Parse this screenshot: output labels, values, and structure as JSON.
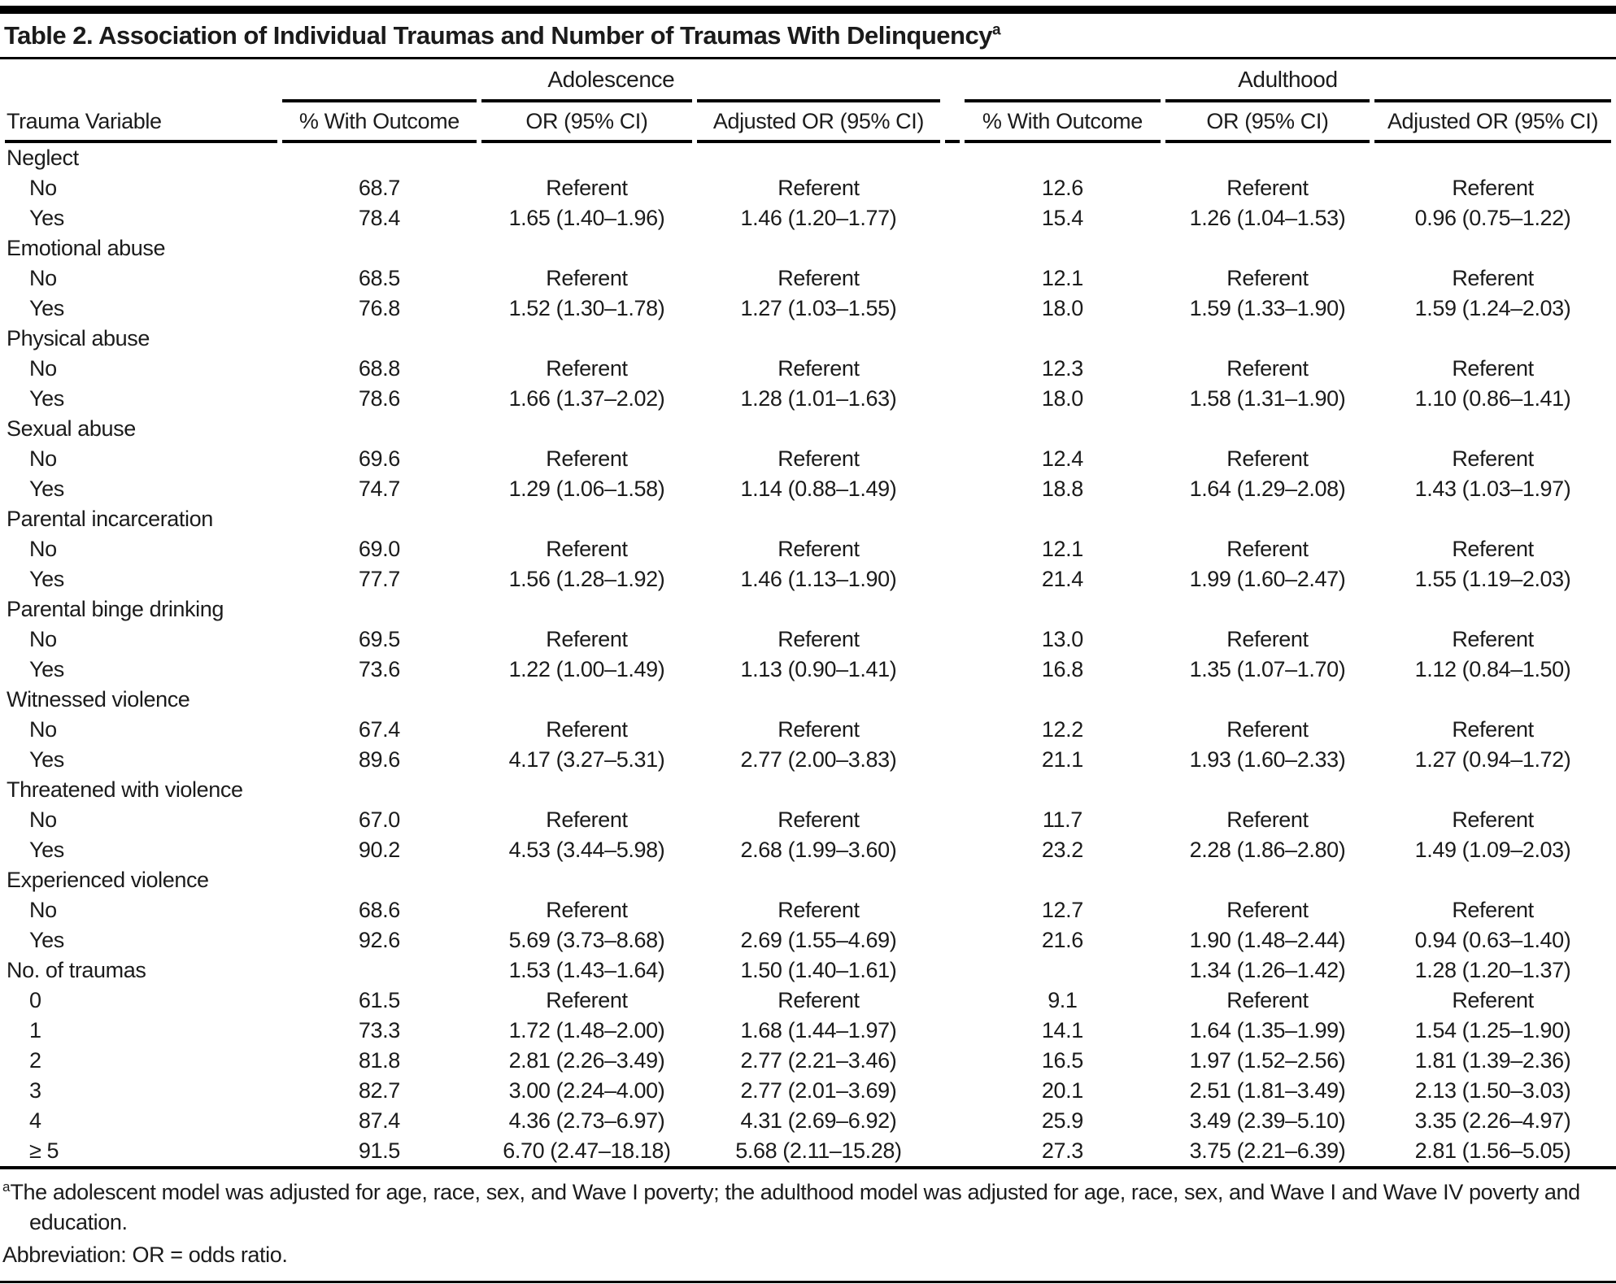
{
  "title": "Table 2. Association of Individual Traumas and Number of Traumas With Delinquency",
  "title_superscript": "a",
  "col_groups": [
    {
      "label": "Adolescence",
      "span": 3
    },
    {
      "label": "Adulthood",
      "span": 3
    }
  ],
  "columns": [
    "Trauma Variable",
    "% With Outcome",
    "OR (95% CI)",
    "Adjusted OR (95% CI)",
    "% With Outcome",
    "OR (95% CI)",
    "Adjusted OR (95% CI)"
  ],
  "rows": [
    {
      "label": "Neglect",
      "indent": false,
      "cells": [
        "",
        "",
        "",
        "",
        "",
        ""
      ]
    },
    {
      "label": "No",
      "indent": true,
      "cells": [
        "68.7",
        "Referent",
        "Referent",
        "12.6",
        "Referent",
        "Referent"
      ]
    },
    {
      "label": "Yes",
      "indent": true,
      "cells": [
        "78.4",
        "1.65 (1.40–1.96)",
        "1.46 (1.20–1.77)",
        "15.4",
        "1.26 (1.04–1.53)",
        "0.96 (0.75–1.22)"
      ]
    },
    {
      "label": "Emotional abuse",
      "indent": false,
      "cells": [
        "",
        "",
        "",
        "",
        "",
        ""
      ]
    },
    {
      "label": "No",
      "indent": true,
      "cells": [
        "68.5",
        "Referent",
        "Referent",
        "12.1",
        "Referent",
        "Referent"
      ]
    },
    {
      "label": "Yes",
      "indent": true,
      "cells": [
        "76.8",
        "1.52 (1.30–1.78)",
        "1.27 (1.03–1.55)",
        "18.0",
        "1.59 (1.33–1.90)",
        "1.59 (1.24–2.03)"
      ]
    },
    {
      "label": "Physical abuse",
      "indent": false,
      "cells": [
        "",
        "",
        "",
        "",
        "",
        ""
      ]
    },
    {
      "label": "No",
      "indent": true,
      "cells": [
        "68.8",
        "Referent",
        "Referent",
        "12.3",
        "Referent",
        "Referent"
      ]
    },
    {
      "label": "Yes",
      "indent": true,
      "cells": [
        "78.6",
        "1.66 (1.37–2.02)",
        "1.28 (1.01–1.63)",
        "18.0",
        "1.58 (1.31–1.90)",
        "1.10 (0.86–1.41)"
      ]
    },
    {
      "label": "Sexual abuse",
      "indent": false,
      "cells": [
        "",
        "",
        "",
        "",
        "",
        ""
      ]
    },
    {
      "label": "No",
      "indent": true,
      "cells": [
        "69.6",
        "Referent",
        "Referent",
        "12.4",
        "Referent",
        "Referent"
      ]
    },
    {
      "label": "Yes",
      "indent": true,
      "cells": [
        "74.7",
        "1.29 (1.06–1.58)",
        "1.14 (0.88–1.49)",
        "18.8",
        "1.64 (1.29–2.08)",
        "1.43 (1.03–1.97)"
      ]
    },
    {
      "label": "Parental incarceration",
      "indent": false,
      "cells": [
        "",
        "",
        "",
        "",
        "",
        ""
      ]
    },
    {
      "label": "No",
      "indent": true,
      "cells": [
        "69.0",
        "Referent",
        "Referent",
        "12.1",
        "Referent",
        "Referent"
      ]
    },
    {
      "label": "Yes",
      "indent": true,
      "cells": [
        "77.7",
        "1.56 (1.28–1.92)",
        "1.46 (1.13–1.90)",
        "21.4",
        "1.99 (1.60–2.47)",
        "1.55 (1.19–2.03)"
      ]
    },
    {
      "label": "Parental binge drinking",
      "indent": false,
      "cells": [
        "",
        "",
        "",
        "",
        "",
        ""
      ]
    },
    {
      "label": "No",
      "indent": true,
      "cells": [
        "69.5",
        "Referent",
        "Referent",
        "13.0",
        "Referent",
        "Referent"
      ]
    },
    {
      "label": "Yes",
      "indent": true,
      "cells": [
        "73.6",
        "1.22 (1.00–1.49)",
        "1.13 (0.90–1.41)",
        "16.8",
        "1.35 (1.07–1.70)",
        "1.12 (0.84–1.50)"
      ]
    },
    {
      "label": "Witnessed violence",
      "indent": false,
      "cells": [
        "",
        "",
        "",
        "",
        "",
        ""
      ]
    },
    {
      "label": "No",
      "indent": true,
      "cells": [
        "67.4",
        "Referent",
        "Referent",
        "12.2",
        "Referent",
        "Referent"
      ]
    },
    {
      "label": "Yes",
      "indent": true,
      "cells": [
        "89.6",
        "4.17 (3.27–5.31)",
        "2.77 (2.00–3.83)",
        "21.1",
        "1.93 (1.60–2.33)",
        "1.27 (0.94–1.72)"
      ]
    },
    {
      "label": "Threatened with violence",
      "indent": false,
      "cells": [
        "",
        "",
        "",
        "",
        "",
        ""
      ]
    },
    {
      "label": "No",
      "indent": true,
      "cells": [
        "67.0",
        "Referent",
        "Referent",
        "11.7",
        "Referent",
        "Referent"
      ]
    },
    {
      "label": "Yes",
      "indent": true,
      "cells": [
        "90.2",
        "4.53 (3.44–5.98)",
        "2.68 (1.99–3.60)",
        "23.2",
        "2.28 (1.86–2.80)",
        "1.49 (1.09–2.03)"
      ]
    },
    {
      "label": "Experienced violence",
      "indent": false,
      "cells": [
        "",
        "",
        "",
        "",
        "",
        ""
      ]
    },
    {
      "label": "No",
      "indent": true,
      "cells": [
        "68.6",
        "Referent",
        "Referent",
        "12.7",
        "Referent",
        "Referent"
      ]
    },
    {
      "label": "Yes",
      "indent": true,
      "cells": [
        "92.6",
        "5.69 (3.73–8.68)",
        "2.69 (1.55–4.69)",
        "21.6",
        "1.90 (1.48–2.44)",
        "0.94 (0.63–1.40)"
      ]
    },
    {
      "label": "No. of traumas",
      "indent": false,
      "cells": [
        "",
        "1.53 (1.43–1.64)",
        "1.50 (1.40–1.61)",
        "",
        "1.34 (1.26–1.42)",
        "1.28 (1.20–1.37)"
      ]
    },
    {
      "label": "0",
      "indent": true,
      "cells": [
        "61.5",
        "Referent",
        "Referent",
        "9.1",
        "Referent",
        "Referent"
      ]
    },
    {
      "label": "1",
      "indent": true,
      "cells": [
        "73.3",
        "1.72 (1.48–2.00)",
        "1.68 (1.44–1.97)",
        "14.1",
        "1.64 (1.35–1.99)",
        "1.54 (1.25–1.90)"
      ]
    },
    {
      "label": "2",
      "indent": true,
      "cells": [
        "81.8",
        "2.81 (2.26–3.49)",
        "2.77 (2.21–3.46)",
        "16.5",
        "1.97 (1.52–2.56)",
        "1.81 (1.39–2.36)"
      ]
    },
    {
      "label": "3",
      "indent": true,
      "cells": [
        "82.7",
        "3.00 (2.24–4.00)",
        "2.77 (2.01–3.69)",
        "20.1",
        "2.51 (1.81–3.49)",
        "2.13 (1.50–3.03)"
      ]
    },
    {
      "label": "4",
      "indent": true,
      "cells": [
        "87.4",
        "4.36 (2.73–6.97)",
        "4.31 (2.69–6.92)",
        "25.9",
        "3.49 (2.39–5.10)",
        "3.35 (2.26–4.97)"
      ]
    },
    {
      "label": "≥ 5",
      "indent": true,
      "cells": [
        "91.5",
        "6.70 (2.47–18.18)",
        "5.68 (2.11–15.28)",
        "27.3",
        "3.75 (2.21–6.39)",
        "2.81 (1.56–5.05)"
      ]
    }
  ],
  "footnotes": {
    "a_marker": "a",
    "a_text": "The adolescent model was adjusted for age, race, sex, and Wave I poverty; the adulthood model was adjusted for age, race, sex, and Wave I and Wave IV poverty and education.",
    "abbreviation": "Abbreviation: OR = odds ratio."
  }
}
